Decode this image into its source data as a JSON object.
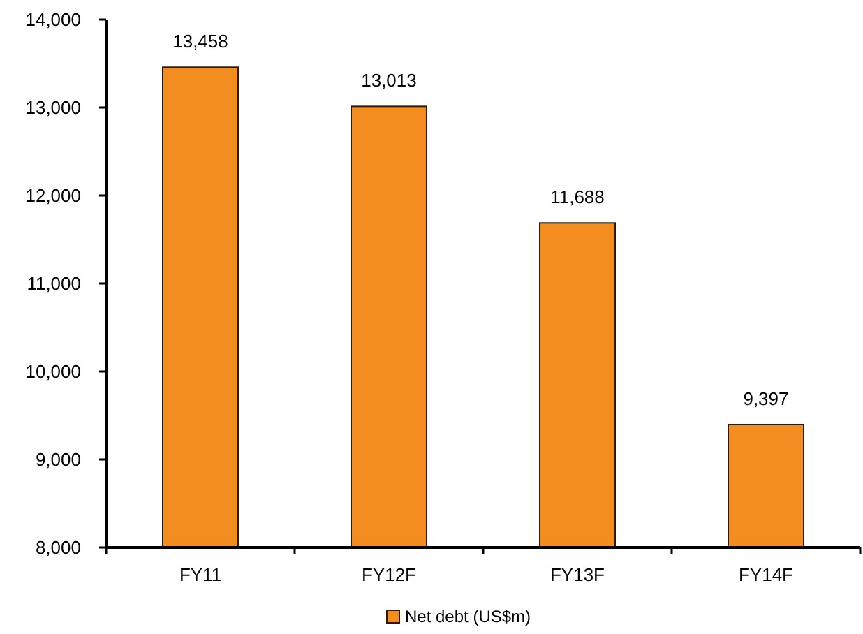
{
  "chart_data": {
    "type": "bar",
    "categories": [
      "FY11",
      "FY12F",
      "FY13F",
      "FY14F"
    ],
    "series": [
      {
        "name": "Net debt (US$m)",
        "color": "#f48d1f",
        "values": [
          13458,
          13013,
          11688,
          9397
        ]
      }
    ],
    "ylim": [
      8000,
      14000
    ],
    "yticks": [
      {
        "value": 8000,
        "label": "8,000"
      },
      {
        "value": 9000,
        "label": "9,000"
      },
      {
        "value": 10000,
        "label": "10,000"
      },
      {
        "value": 11000,
        "label": "11,000"
      },
      {
        "value": 12000,
        "label": "12,000"
      },
      {
        "value": 13000,
        "label": "13,000"
      },
      {
        "value": 14000,
        "label": "14,000"
      }
    ],
    "value_labels": [
      "13,458",
      "13,013",
      "11,688",
      "9,397"
    ],
    "grid": false,
    "legend": "bottom"
  }
}
